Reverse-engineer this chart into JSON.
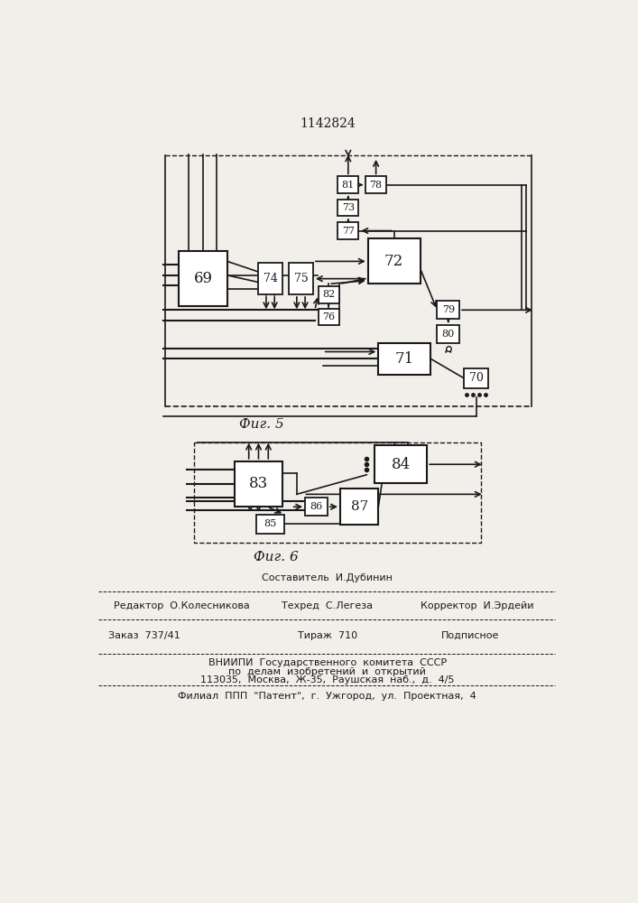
{
  "title": "1142824",
  "fig5_label": "Фиг. 5",
  "fig6_label": "Фиг. 6",
  "bg_color": "#f2efea",
  "box_color": "#ffffff",
  "line_color": "#1a1a1a"
}
